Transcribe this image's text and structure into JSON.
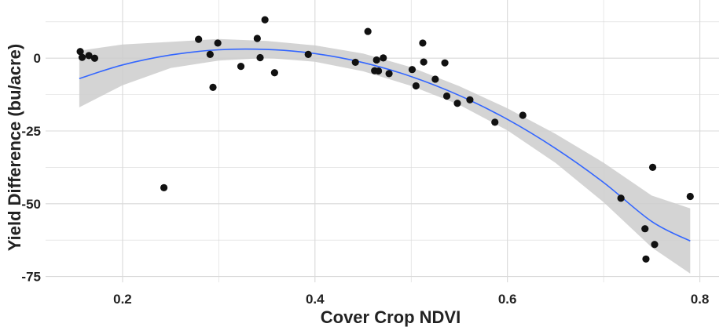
{
  "chart_data": {
    "type": "scatter",
    "title": "",
    "xlabel": "Cover Crop NDVI",
    "ylabel": "Yield Difference (bu/acre)",
    "xlim": [
      0.12,
      0.82
    ],
    "ylim": [
      -77,
      20
    ],
    "x_ticks": [
      0.2,
      0.4,
      0.6,
      0.8
    ],
    "x_tick_labels": [
      "0.2",
      "0.4",
      "0.6",
      "0.8"
    ],
    "y_ticks": [
      0,
      -25,
      -50,
      -75
    ],
    "y_tick_labels": [
      "0",
      "-25",
      "-50",
      "-75"
    ],
    "grid": true,
    "legend": "none",
    "colors": {
      "points": "#111111",
      "fit_line": "#3366ff",
      "confidence_band": "#cccccc",
      "grid": "#d9d9d9"
    },
    "points": [
      {
        "x": 0.156,
        "y": 2.3
      },
      {
        "x": 0.158,
        "y": 0.3
      },
      {
        "x": 0.165,
        "y": 0.9
      },
      {
        "x": 0.171,
        "y": 0.0
      },
      {
        "x": 0.243,
        "y": -44.5
      },
      {
        "x": 0.279,
        "y": 6.5
      },
      {
        "x": 0.291,
        "y": 1.3
      },
      {
        "x": 0.294,
        "y": -10.0
      },
      {
        "x": 0.299,
        "y": 5.2
      },
      {
        "x": 0.323,
        "y": -2.8
      },
      {
        "x": 0.34,
        "y": 6.8
      },
      {
        "x": 0.343,
        "y": 0.2
      },
      {
        "x": 0.348,
        "y": 13.2
      },
      {
        "x": 0.358,
        "y": -5.0
      },
      {
        "x": 0.393,
        "y": 1.3
      },
      {
        "x": 0.442,
        "y": -1.4
      },
      {
        "x": 0.455,
        "y": 9.2
      },
      {
        "x": 0.462,
        "y": -4.3
      },
      {
        "x": 0.464,
        "y": -0.6
      },
      {
        "x": 0.466,
        "y": -4.4
      },
      {
        "x": 0.471,
        "y": 0.1
      },
      {
        "x": 0.477,
        "y": -5.3
      },
      {
        "x": 0.501,
        "y": -3.9
      },
      {
        "x": 0.505,
        "y": -9.5
      },
      {
        "x": 0.512,
        "y": 5.2
      },
      {
        "x": 0.513,
        "y": -1.3
      },
      {
        "x": 0.525,
        "y": -7.2
      },
      {
        "x": 0.535,
        "y": -1.6
      },
      {
        "x": 0.537,
        "y": -13.0
      },
      {
        "x": 0.548,
        "y": -15.5
      },
      {
        "x": 0.561,
        "y": -14.3
      },
      {
        "x": 0.587,
        "y": -22.0
      },
      {
        "x": 0.616,
        "y": -19.6
      },
      {
        "x": 0.718,
        "y": -48.1
      },
      {
        "x": 0.743,
        "y": -58.6
      },
      {
        "x": 0.744,
        "y": -69.0
      },
      {
        "x": 0.751,
        "y": -37.5
      },
      {
        "x": 0.753,
        "y": -64.0
      },
      {
        "x": 0.79,
        "y": -47.5
      }
    ],
    "fit": {
      "method": "quadratic",
      "x": [
        0.155,
        0.2,
        0.25,
        0.3,
        0.35,
        0.4,
        0.45,
        0.5,
        0.55,
        0.6,
        0.65,
        0.7,
        0.75,
        0.79
      ],
      "y": [
        -7.0,
        -2.3,
        1.1,
        2.9,
        3.0,
        1.6,
        -1.5,
        -6.3,
        -12.8,
        -21.0,
        -31.0,
        -42.7,
        -56.1,
        -62.8
      ],
      "lower": [
        -16.9,
        -9.3,
        -3.4,
        -0.8,
        0.1,
        -1.2,
        -4.5,
        -9.5,
        -16.0,
        -24.8,
        -36.0,
        -49.5,
        -65.0,
        -74.0
      ],
      "upper": [
        2.6,
        4.7,
        5.6,
        6.6,
        5.9,
        4.4,
        1.6,
        -3.1,
        -9.6,
        -17.2,
        -26.0,
        -35.9,
        -47.2,
        -51.6
      ]
    }
  }
}
